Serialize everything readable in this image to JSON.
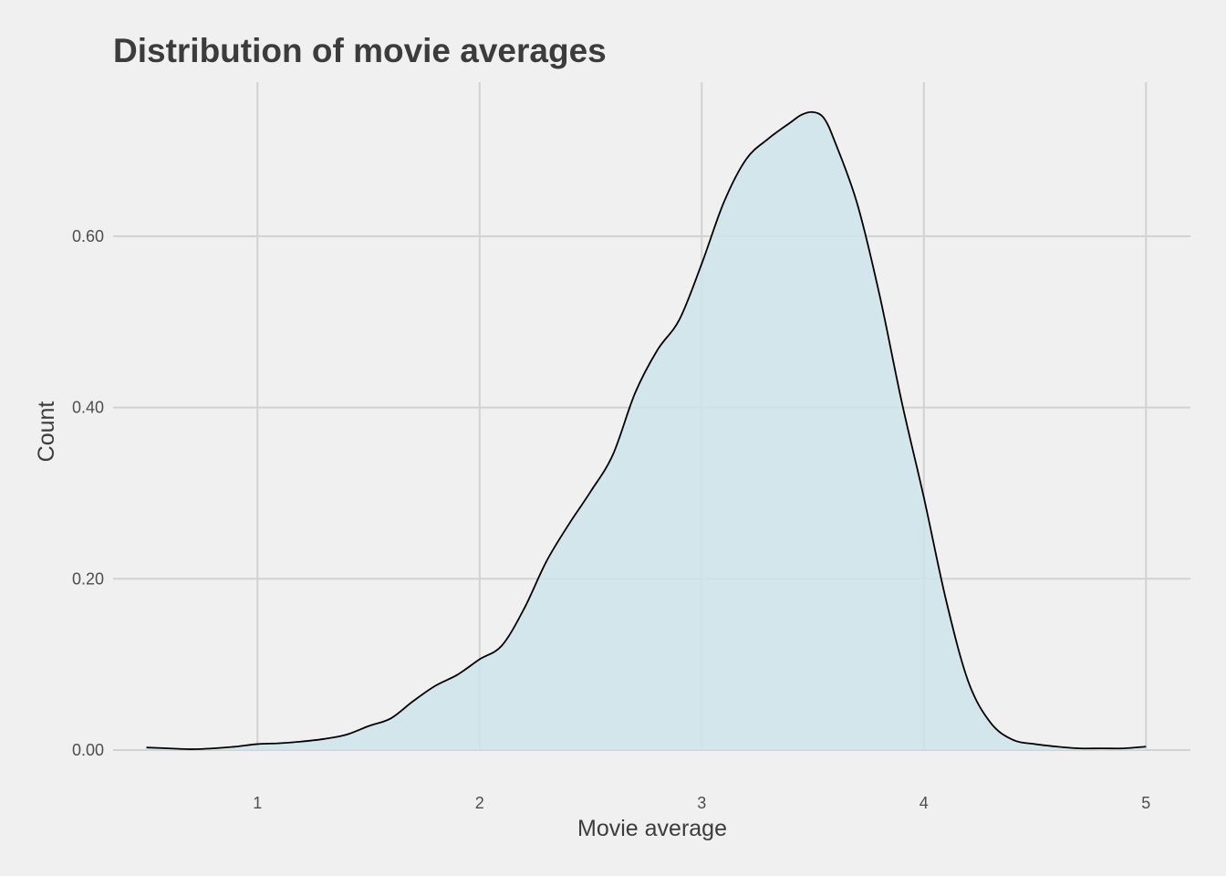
{
  "chart_data": {
    "type": "area",
    "title": "Distribution of movie averages",
    "xlabel": "Movie average",
    "ylabel": "Count",
    "xlim": [
      0.35,
      5.2
    ],
    "ylim": [
      0,
      0.78
    ],
    "x_ticks": [
      1,
      2,
      3,
      4,
      5
    ],
    "x_tick_labels": [
      "1",
      "2",
      "3",
      "4",
      "5"
    ],
    "y_ticks": [
      0,
      0.2,
      0.4,
      0.6
    ],
    "y_tick_labels": [
      "0.00",
      "0.20",
      "0.40",
      "0.60"
    ],
    "grid": true,
    "legend": "none",
    "colors": {
      "fill": "#cde4ea",
      "line": "#000000",
      "grid": "#d2d2d2",
      "background": "#f0f0f0"
    },
    "series": [
      {
        "x": [
          0.5,
          0.6,
          0.7,
          0.8,
          0.9,
          1.0,
          1.1,
          1.2,
          1.3,
          1.4,
          1.5,
          1.6,
          1.7,
          1.8,
          1.9,
          2.0,
          2.1,
          2.2,
          2.3,
          2.4,
          2.5,
          2.6,
          2.7,
          2.8,
          2.9,
          3.0,
          3.1,
          3.2,
          3.3,
          3.4,
          3.45,
          3.5,
          3.55,
          3.6,
          3.7,
          3.8,
          3.9,
          4.0,
          4.1,
          4.2,
          4.3,
          4.4,
          4.5,
          4.6,
          4.7,
          4.8,
          4.9,
          5.0
        ],
        "y": [
          0.003,
          0.002,
          0.001,
          0.002,
          0.004,
          0.007,
          0.008,
          0.01,
          0.013,
          0.018,
          0.028,
          0.037,
          0.057,
          0.075,
          0.088,
          0.106,
          0.122,
          0.165,
          0.22,
          0.263,
          0.302,
          0.345,
          0.417,
          0.467,
          0.503,
          0.568,
          0.64,
          0.69,
          0.714,
          0.733,
          0.742,
          0.745,
          0.738,
          0.71,
          0.638,
          0.532,
          0.407,
          0.295,
          0.175,
          0.08,
          0.032,
          0.012,
          0.007,
          0.004,
          0.002,
          0.002,
          0.002,
          0.004
        ]
      }
    ]
  }
}
